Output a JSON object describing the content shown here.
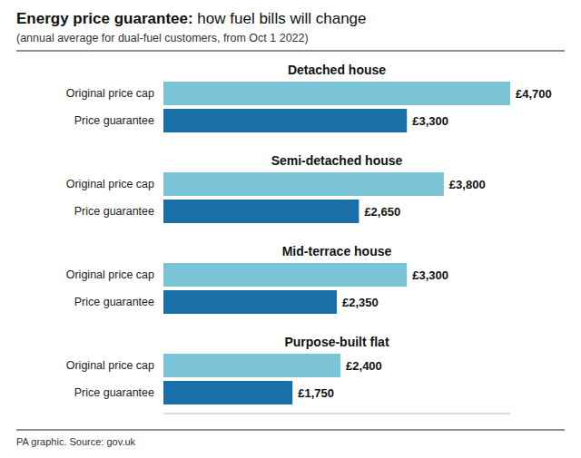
{
  "chart_data": {
    "type": "bar",
    "orientation": "horizontal",
    "title": "Energy price guarantee: how fuel bills will change",
    "subtitle": "(annual average for dual-fuel customers, from Oct 1 2022)",
    "annotations": [
      "PA graphic. Source: gov.uk"
    ],
    "categories": [
      "Detached house",
      "Semi-detached house",
      "Mid-terrace house",
      "Purpose-built flat"
    ],
    "series": [
      {
        "name": "Original price cap",
        "color": "#7BC4D8",
        "values": [
          4700,
          3800,
          3300,
          2400
        ],
        "value_labels": [
          "£4,700",
          "£3,800",
          "£3,300",
          "£2,400"
        ]
      },
      {
        "name": "Price guarantee",
        "color": "#1B6FA8",
        "values": [
          3300,
          2650,
          2350,
          1750
        ],
        "value_labels": [
          "£3,300",
          "£2,650",
          "£2,350",
          "£1,750"
        ]
      }
    ],
    "xlim": [
      0,
      4700
    ],
    "data_labels": true,
    "tick_labels": false,
    "grid": false
  }
}
